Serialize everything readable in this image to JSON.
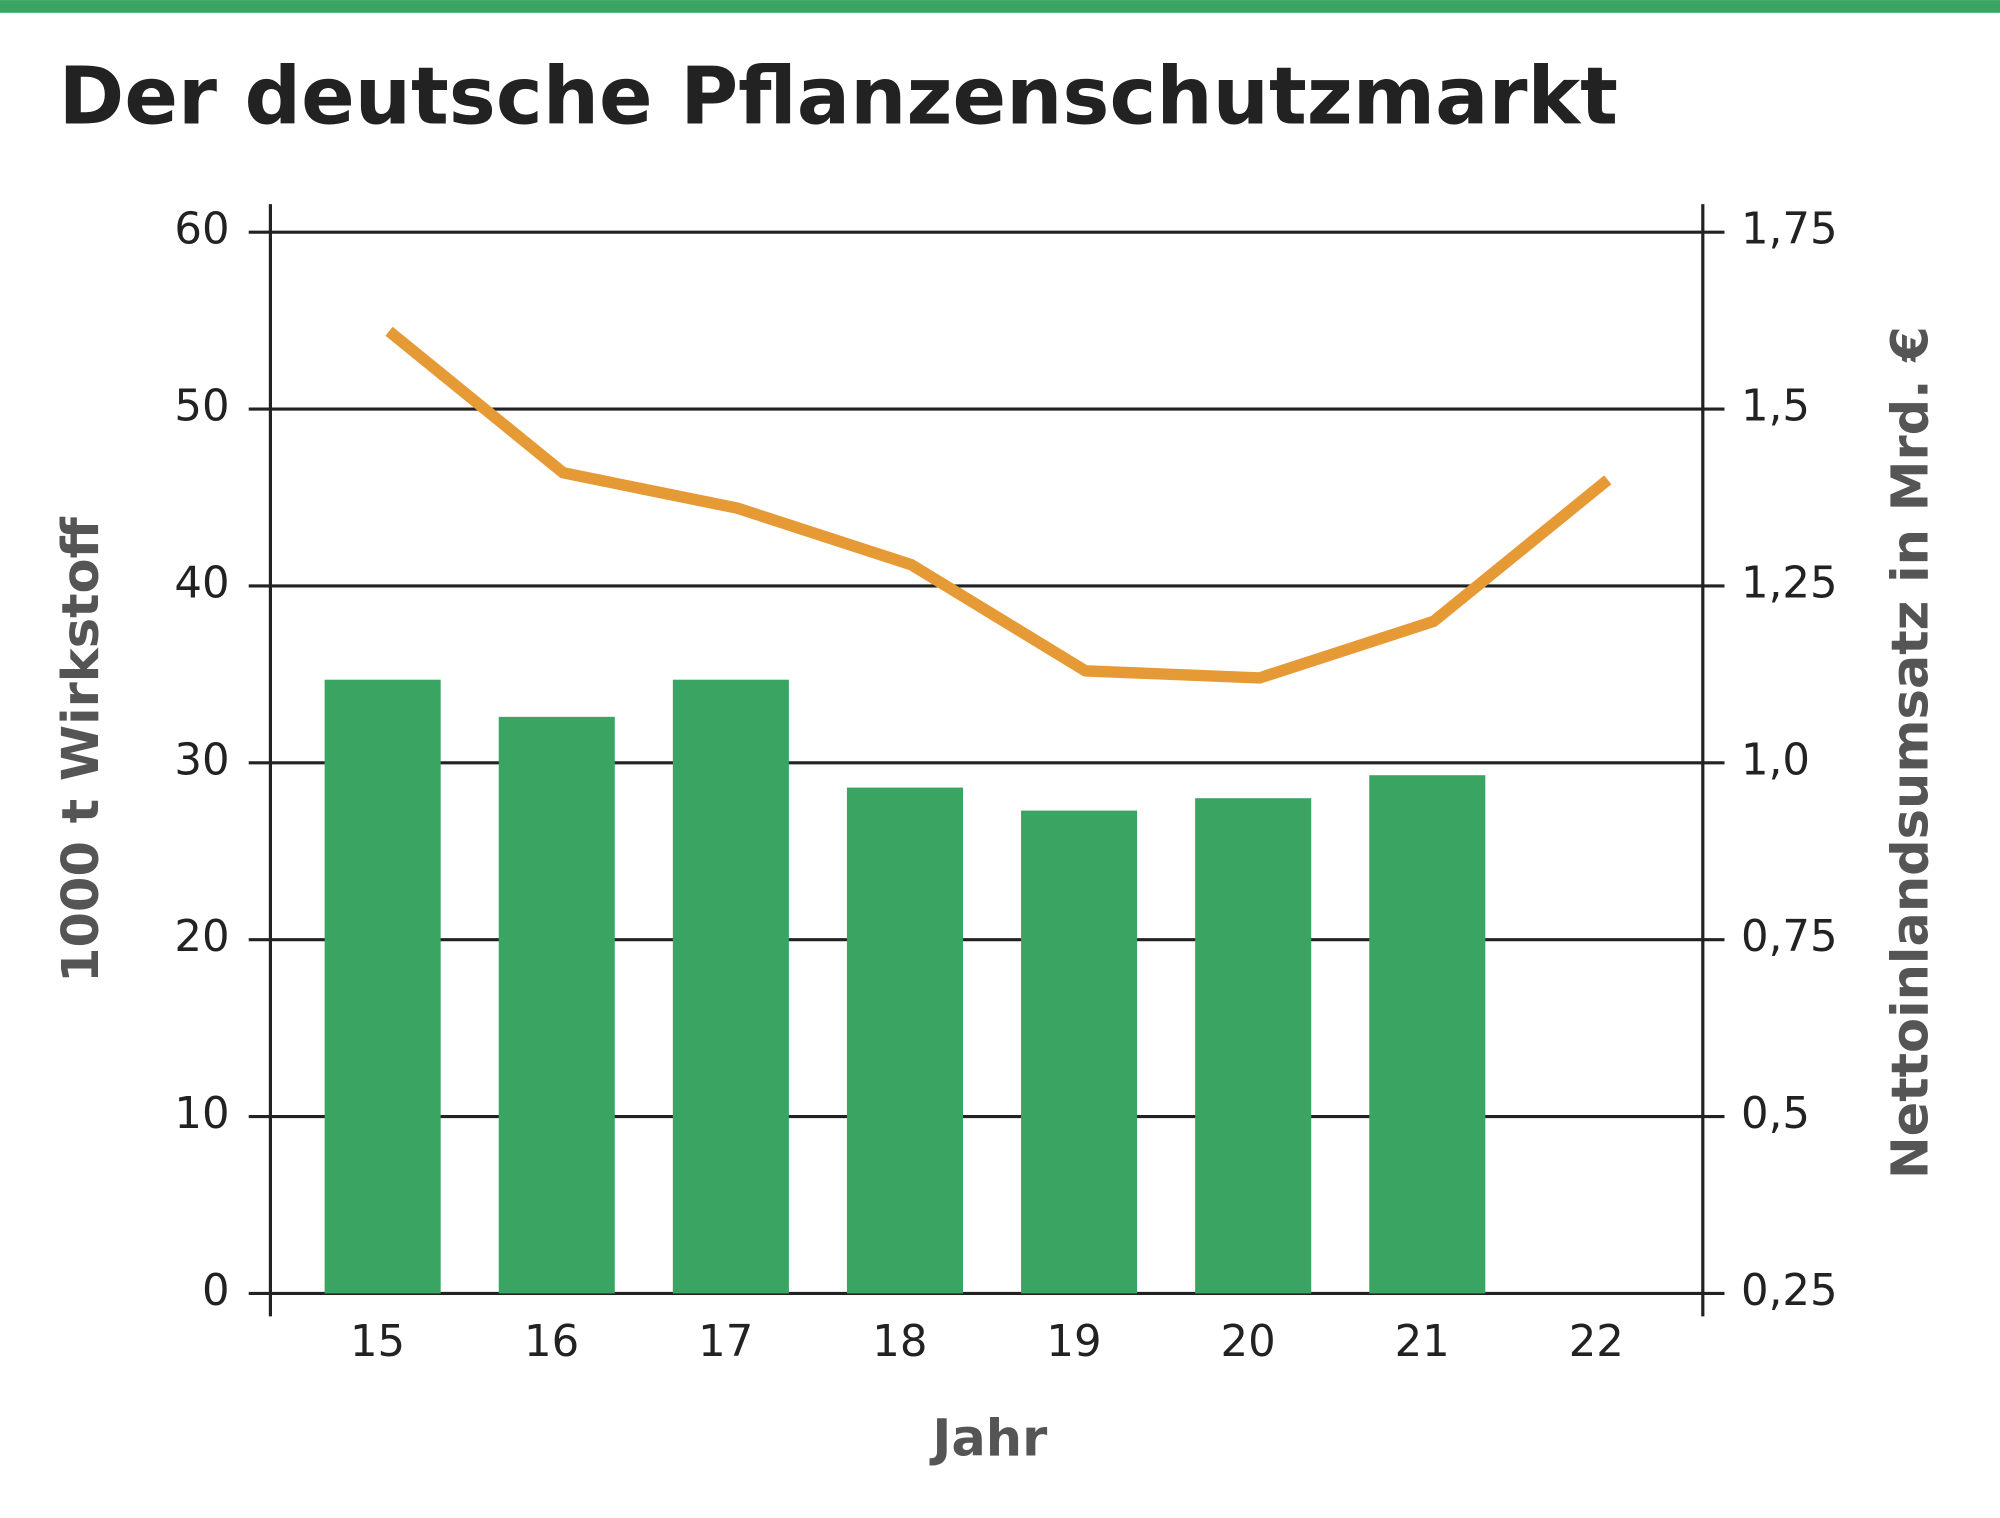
{
  "chart_data": {
    "type": "bar",
    "title": "Der deutsche Pflanzenschutzmarkt",
    "x_label": "Jahr",
    "y_label": "1000 t Wirkstoff",
    "y2_label": "Nettoinlandsumsatz in Mrd. €",
    "categories": [
      "15",
      "16",
      "17",
      "18",
      "19",
      "20",
      "21",
      "22"
    ],
    "series": [
      {
        "type": "bar",
        "color": "#3aa563",
        "values": [
          34.7,
          32.6,
          34.7,
          28.6,
          27.3,
          28.0,
          29.3,
          null
        ]
      },
      {
        "type": "line",
        "axis": "y2",
        "color": "#e59a35",
        "values": [
          1.61,
          1.41,
          1.36,
          1.28,
          1.13,
          1.12,
          1.2,
          1.4
        ]
      }
    ],
    "ylim": [
      0,
      60
    ],
    "yticks": [
      0,
      10,
      20,
      30,
      40,
      50,
      60
    ],
    "y2lim": [
      0.25,
      1.75
    ],
    "y2ticks": [
      {
        "value": 0.25,
        "label": "0,25"
      },
      {
        "value": 0.5,
        "label": "0,5"
      },
      {
        "value": 0.75,
        "label": "0,75"
      },
      {
        "value": 1.0,
        "label": "1,0"
      },
      {
        "value": 1.25,
        "label": "1,25"
      },
      {
        "value": 1.5,
        "label": "1,5"
      },
      {
        "value": 1.75,
        "label": "1,75"
      }
    ],
    "grid": true
  }
}
